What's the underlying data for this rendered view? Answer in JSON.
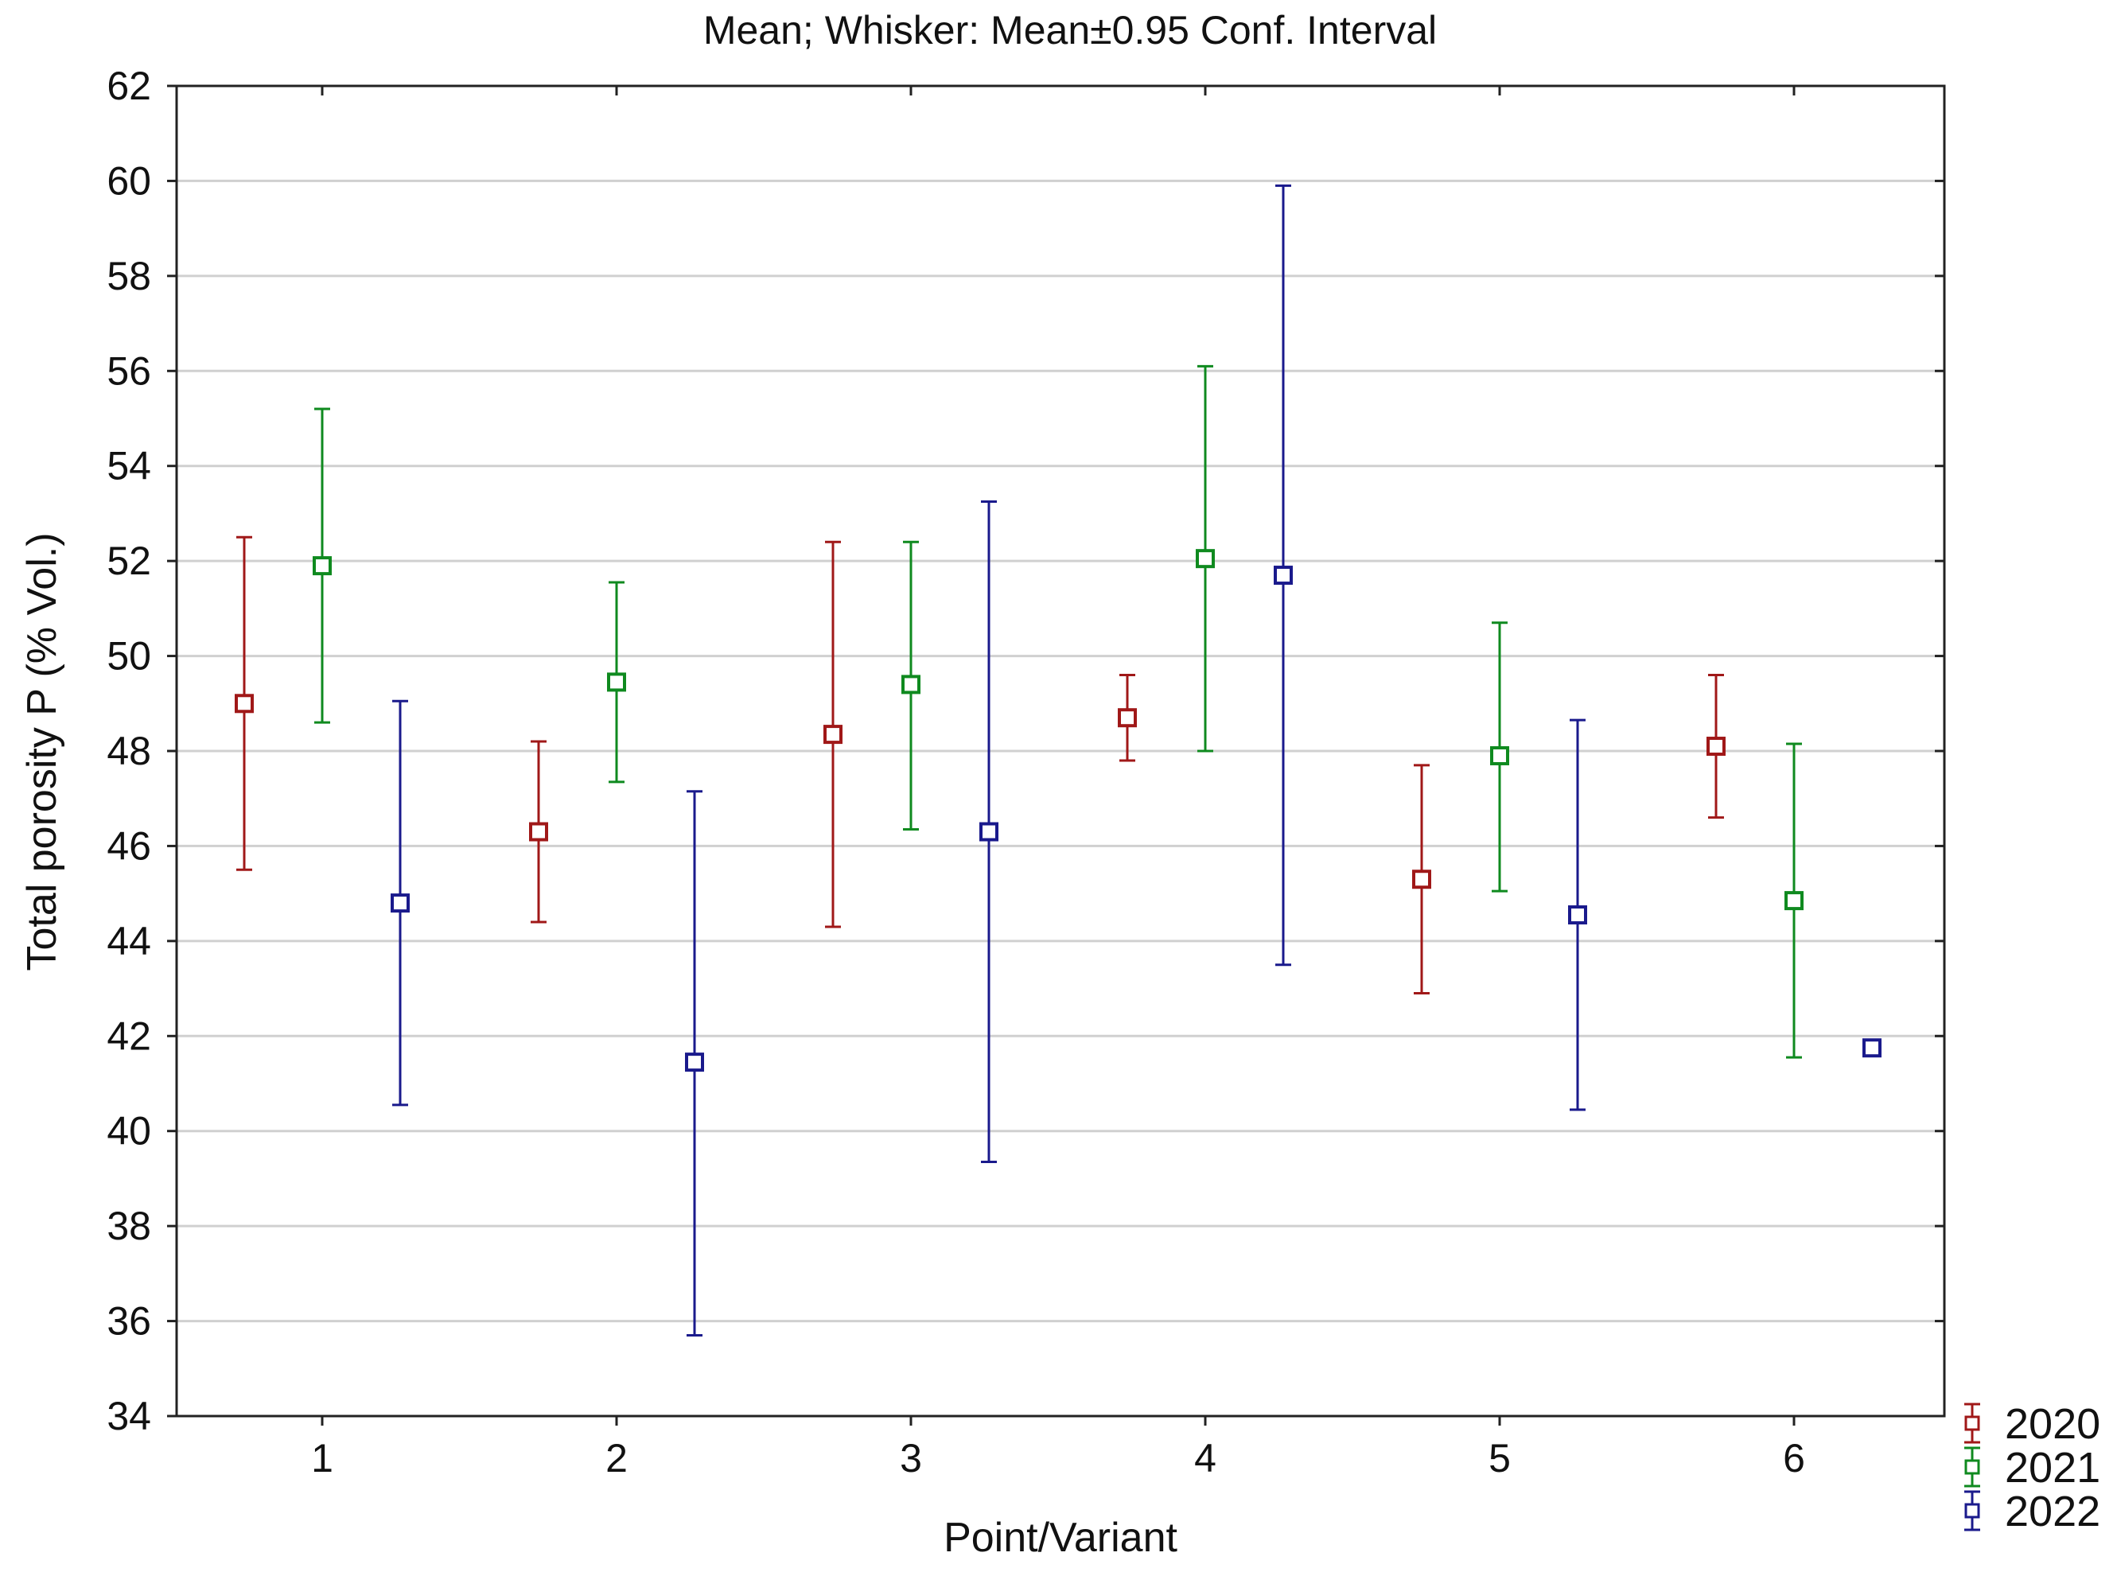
{
  "chart_data": {
    "type": "errorbar",
    "title": "Mean; Whisker: Mean±0.95 Conf. Interval",
    "xlabel": "Point/Variant",
    "ylabel": "Total porosity P (% Vol.)",
    "categories": [
      "1",
      "2",
      "3",
      "4",
      "5",
      "6"
    ],
    "ylim": [
      34,
      62
    ],
    "yticks": [
      34,
      36,
      38,
      40,
      42,
      44,
      46,
      48,
      50,
      52,
      54,
      56,
      58,
      60,
      62
    ],
    "grid": "horizontal",
    "legend_position": "bottom-right, outside plot",
    "series": [
      {
        "name": "2020",
        "color": "#a01818",
        "mean": [
          49.0,
          46.3,
          48.35,
          48.7,
          45.3,
          48.1
        ],
        "lower": [
          45.5,
          44.4,
          44.3,
          47.8,
          42.9,
          46.6
        ],
        "upper": [
          52.5,
          48.2,
          52.4,
          49.6,
          47.7,
          49.6
        ]
      },
      {
        "name": "2021",
        "color": "#0f8a1f",
        "mean": [
          51.9,
          49.45,
          49.4,
          52.05,
          47.9,
          44.85
        ],
        "lower": [
          48.6,
          47.35,
          46.35,
          48.0,
          45.05,
          41.55
        ],
        "upper": [
          55.2,
          51.55,
          52.4,
          56.1,
          50.7,
          48.15
        ]
      },
      {
        "name": "2022",
        "color": "#1a1a8c",
        "mean": [
          44.8,
          41.45,
          46.3,
          51.7,
          44.55,
          41.75
        ],
        "lower": [
          40.55,
          35.7,
          39.35,
          43.5,
          40.45,
          41.6
        ],
        "upper": [
          49.05,
          47.15,
          53.25,
          59.9,
          48.65,
          41.9
        ]
      }
    ]
  }
}
